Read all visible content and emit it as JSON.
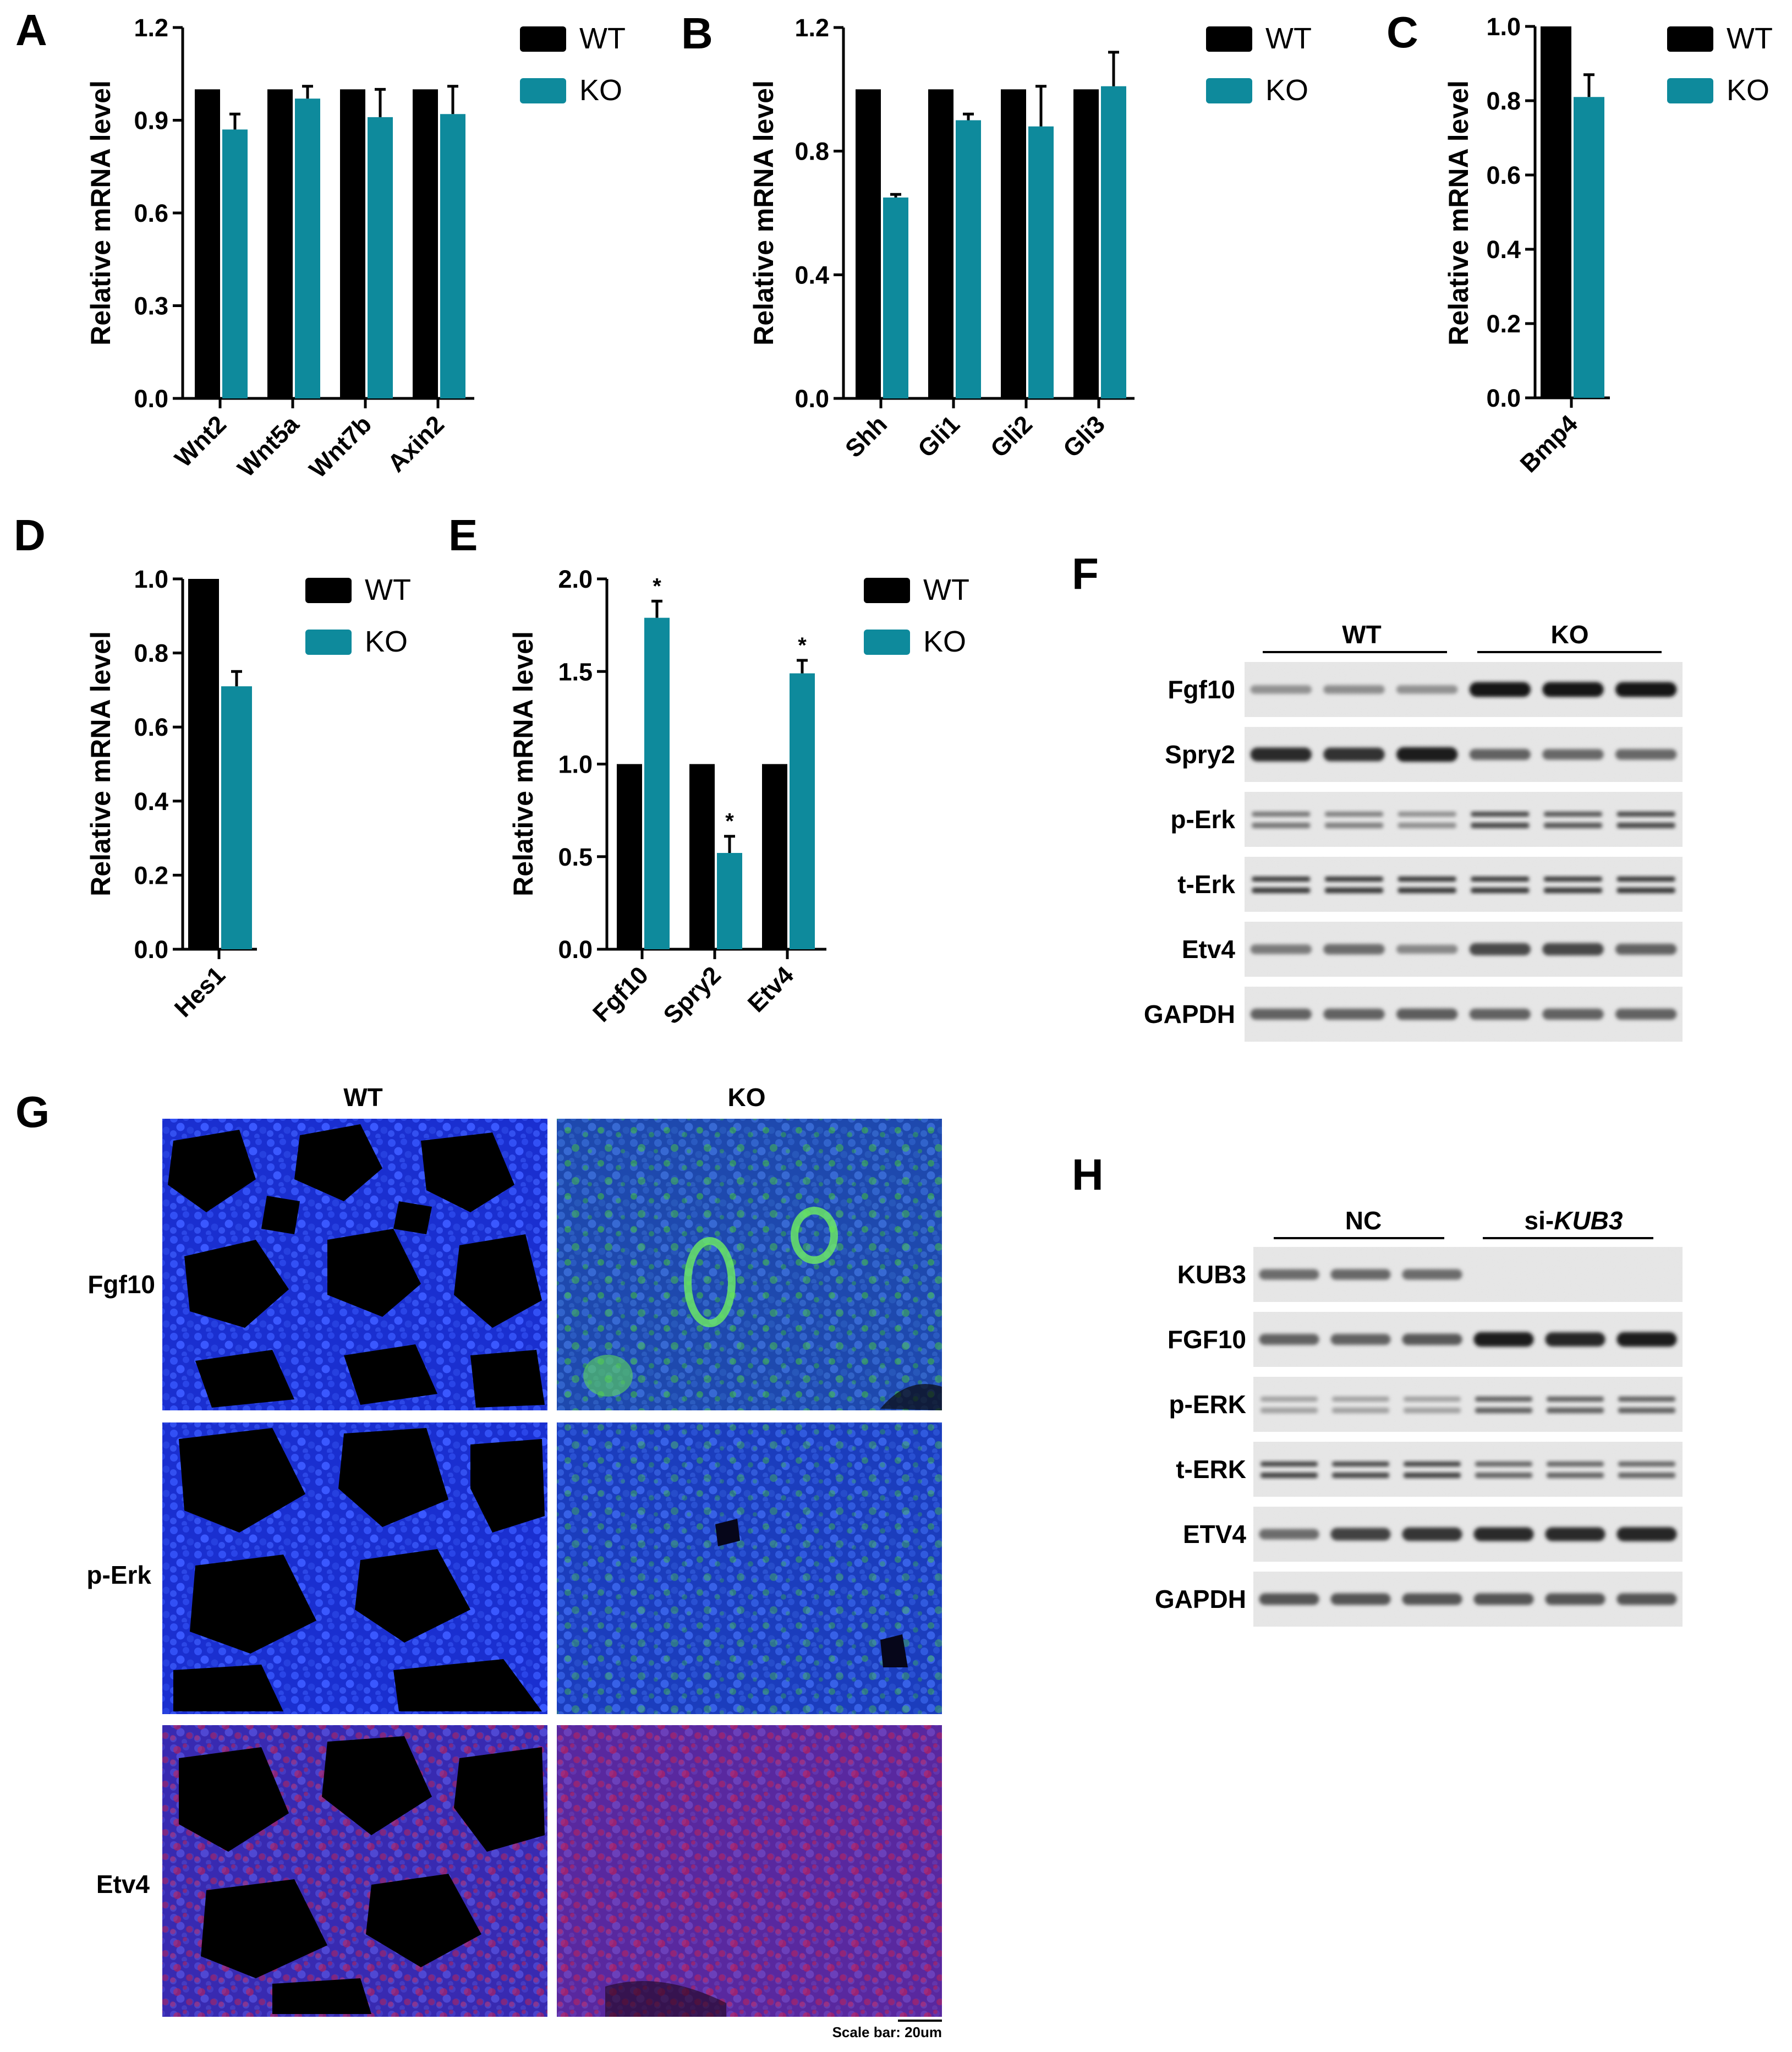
{
  "colors": {
    "wt": "#000000",
    "ko": "#0e8a9c"
  },
  "chart_data": [
    {
      "id": "A",
      "panel_label": "A",
      "type": "bar",
      "ylabel": "Relative mRNA level",
      "ylim": [
        0,
        1.2
      ],
      "yticks": [
        "0.0",
        "0.3",
        "0.6",
        "0.9",
        "1.2"
      ],
      "categories": [
        "Wnt2",
        "Wnt5a",
        "Wnt7b",
        "Axin2"
      ],
      "series": [
        {
          "name": "WT",
          "values": [
            1.0,
            1.0,
            1.0,
            1.0
          ],
          "errors": [
            0,
            0,
            0,
            0
          ]
        },
        {
          "name": "KO",
          "values": [
            0.87,
            0.97,
            0.91,
            0.92
          ],
          "errors": [
            0.05,
            0.04,
            0.09,
            0.09
          ]
        }
      ],
      "legend": [
        "WT",
        "KO"
      ],
      "legend_position": "top-right",
      "grid": false,
      "significance": [
        null,
        null,
        null,
        null
      ]
    },
    {
      "id": "B",
      "panel_label": "B",
      "type": "bar",
      "ylabel": "Relative mRNA level",
      "ylim": [
        0,
        1.2
      ],
      "yticks": [
        "0.0",
        "0.4",
        "0.8",
        "1.2"
      ],
      "categories": [
        "Shh",
        "Gli1",
        "Gli2",
        "Gli3"
      ],
      "series": [
        {
          "name": "WT",
          "values": [
            1.0,
            1.0,
            1.0,
            1.0
          ],
          "errors": [
            0,
            0,
            0,
            0
          ]
        },
        {
          "name": "KO",
          "values": [
            0.65,
            0.9,
            0.88,
            1.01
          ],
          "errors": [
            0.01,
            0.02,
            0.13,
            0.11
          ]
        }
      ],
      "legend": [
        "WT",
        "KO"
      ],
      "legend_position": "top-right",
      "grid": false,
      "significance": [
        null,
        null,
        null,
        null
      ]
    },
    {
      "id": "C",
      "panel_label": "C",
      "type": "bar",
      "ylabel": "Relative mRNA level",
      "ylim": [
        0,
        1.0
      ],
      "yticks": [
        "0.0",
        "0.2",
        "0.4",
        "0.6",
        "0.8",
        "1.0"
      ],
      "categories": [
        "Bmp4"
      ],
      "series": [
        {
          "name": "WT",
          "values": [
            1.0
          ],
          "errors": [
            0
          ]
        },
        {
          "name": "KO",
          "values": [
            0.81
          ],
          "errors": [
            0.06
          ]
        }
      ],
      "legend": [
        "WT",
        "KO"
      ],
      "legend_position": "top-right",
      "grid": false,
      "significance": [
        null
      ]
    },
    {
      "id": "D",
      "panel_label": "D",
      "type": "bar",
      "ylabel": "Relative mRNA level",
      "ylim": [
        0,
        1.0
      ],
      "yticks": [
        "0.0",
        "0.2",
        "0.4",
        "0.6",
        "0.8",
        "1.0"
      ],
      "categories": [
        "Hes1"
      ],
      "series": [
        {
          "name": "WT",
          "values": [
            1.0
          ],
          "errors": [
            0
          ]
        },
        {
          "name": "KO",
          "values": [
            0.71
          ],
          "errors": [
            0.04
          ]
        }
      ],
      "legend": [
        "WT",
        "KO"
      ],
      "legend_position": "top-right",
      "grid": false,
      "significance": [
        null
      ]
    },
    {
      "id": "E",
      "panel_label": "E",
      "type": "bar",
      "ylabel": "Relative mRNA level",
      "ylim": [
        0,
        2.0
      ],
      "yticks": [
        "0.0",
        "0.5",
        "1.0",
        "1.5",
        "2.0"
      ],
      "categories": [
        "Fgf10",
        "Spry2",
        "Etv4"
      ],
      "series": [
        {
          "name": "WT",
          "values": [
            1.0,
            1.0,
            1.0
          ],
          "errors": [
            0,
            0,
            0
          ]
        },
        {
          "name": "KO",
          "values": [
            1.79,
            0.52,
            1.49
          ],
          "errors": [
            0.09,
            0.09,
            0.07
          ]
        }
      ],
      "legend": [
        "WT",
        "KO"
      ],
      "legend_position": "top-right",
      "grid": false,
      "significance": [
        "*",
        "*",
        "*"
      ]
    }
  ],
  "western_F": {
    "label": "F",
    "groups": [
      "WT",
      "KO"
    ],
    "rows": [
      {
        "name": "Fgf10",
        "intensity": [
          0.3,
          0.32,
          0.3,
          0.95,
          0.95,
          0.95
        ]
      },
      {
        "name": "Spry2",
        "intensity": [
          0.85,
          0.82,
          0.92,
          0.55,
          0.52,
          0.52
        ]
      },
      {
        "name": "p-Erk",
        "intensity": [
          0.45,
          0.4,
          0.32,
          0.7,
          0.62,
          0.7
        ]
      },
      {
        "name": "t-Erk",
        "intensity": [
          0.78,
          0.8,
          0.8,
          0.78,
          0.78,
          0.8
        ]
      },
      {
        "name": "Etv4",
        "intensity": [
          0.42,
          0.5,
          0.35,
          0.68,
          0.7,
          0.55
        ]
      },
      {
        "name": "GAPDH",
        "intensity": [
          0.55,
          0.55,
          0.58,
          0.55,
          0.55,
          0.55
        ]
      }
    ]
  },
  "western_H": {
    "label": "H",
    "groups": [
      "NC",
      "si-",
      "KUB3"
    ],
    "rows": [
      {
        "name": "KUB3",
        "intensity": [
          0.5,
          0.52,
          0.5,
          0.0,
          0.0,
          0.0
        ]
      },
      {
        "name": "FGF10",
        "intensity": [
          0.55,
          0.55,
          0.6,
          0.92,
          0.88,
          0.92
        ]
      },
      {
        "name": "p-ERK",
        "intensity": [
          0.22,
          0.22,
          0.22,
          0.58,
          0.58,
          0.58
        ]
      },
      {
        "name": "t-ERK",
        "intensity": [
          0.72,
          0.7,
          0.72,
          0.55,
          0.55,
          0.55
        ]
      },
      {
        "name": "ETV4",
        "intensity": [
          0.5,
          0.72,
          0.8,
          0.85,
          0.85,
          0.88
        ]
      },
      {
        "name": "GAPDH",
        "intensity": [
          0.62,
          0.62,
          0.62,
          0.62,
          0.62,
          0.62
        ]
      }
    ]
  },
  "if_G": {
    "label": "G",
    "columns": [
      "WT",
      "KO"
    ],
    "rows": [
      "Fgf10",
      "p-Erk",
      "Etv4"
    ],
    "scale_bar": "Scale bar: 20um"
  }
}
